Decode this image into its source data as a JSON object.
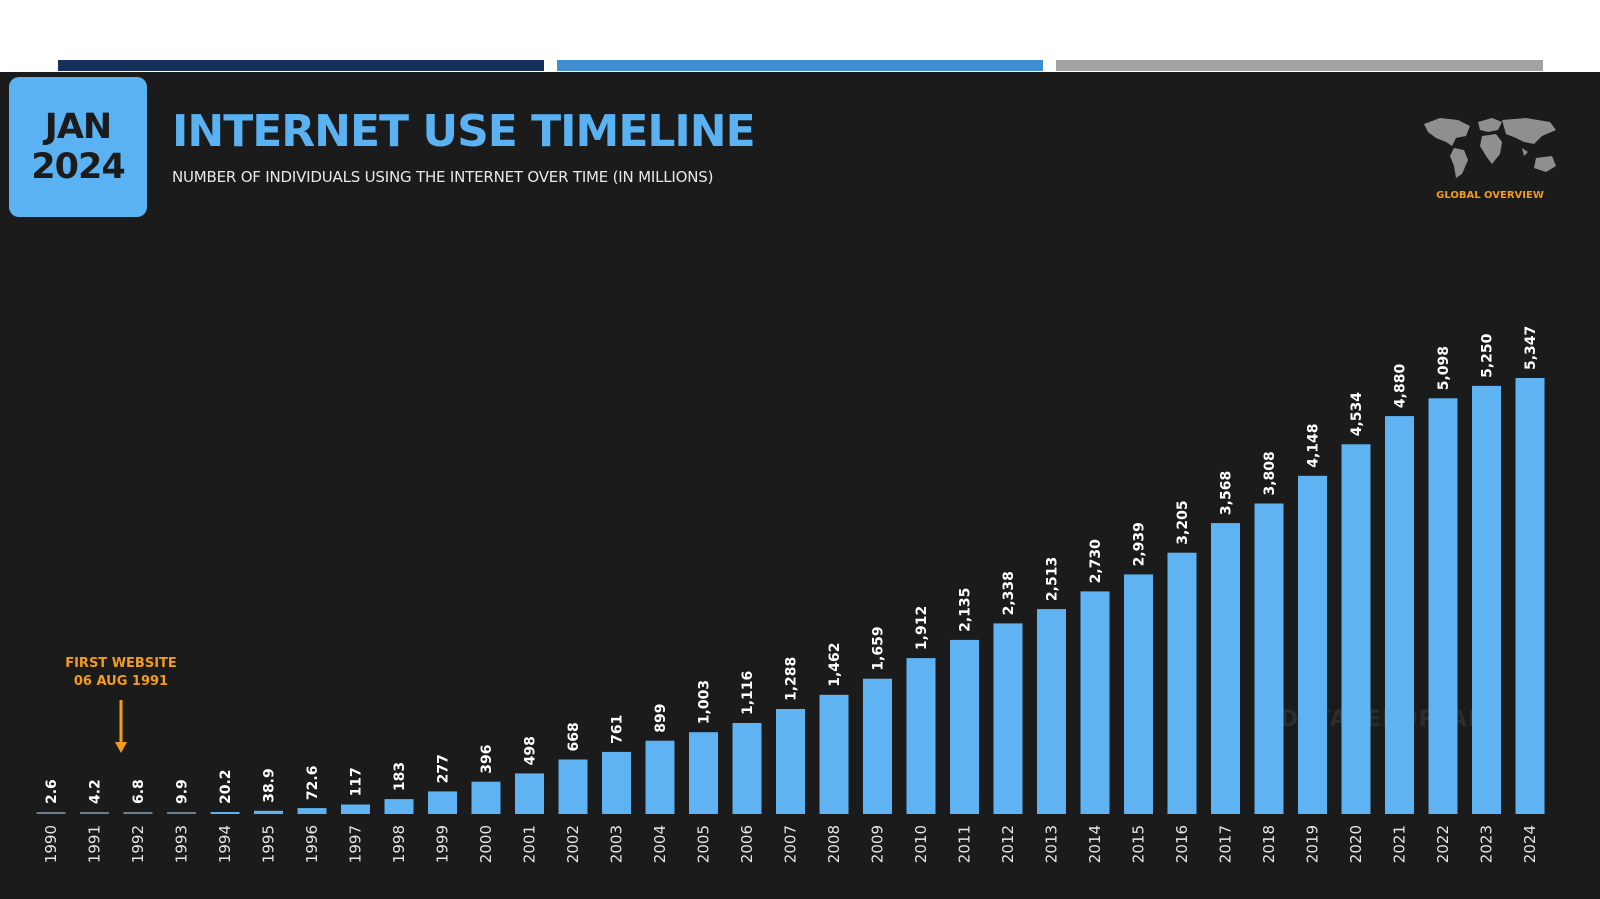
{
  "theme": {
    "accent": "#5ab2f2",
    "bar_color": "#5fb3f3",
    "background": "#1b1b1b",
    "annotation_color": "#f39c19",
    "top_bar_colors": [
      "#17305c",
      "#3f8fd0",
      "#a3a3a3"
    ]
  },
  "header": {
    "badge_month": "JAN",
    "badge_year": "2024",
    "title": "INTERNET USE TIMELINE",
    "subtitle": "NUMBER OF INDIVIDUALS USING THE INTERNET OVER TIME (IN MILLIONS)",
    "map_icon": "world-map-icon",
    "overview_label": "GLOBAL OVERVIEW"
  },
  "annotation": {
    "line1": "FIRST WEBSITE",
    "line2": "06 AUG 1991"
  },
  "watermark": "DATAREPORTAL",
  "chart_data": {
    "type": "bar",
    "title": "INTERNET USE TIMELINE",
    "subtitle": "NUMBER OF INDIVIDUALS USING THE INTERNET OVER TIME (IN MILLIONS)",
    "categories": [
      "1990",
      "1991",
      "1992",
      "1993",
      "1994",
      "1995",
      "1996",
      "1997",
      "1998",
      "1999",
      "2000",
      "2001",
      "2002",
      "2003",
      "2004",
      "2005",
      "2006",
      "2007",
      "2008",
      "2009",
      "2010",
      "2011",
      "2012",
      "2013",
      "2014",
      "2015",
      "2016",
      "2017",
      "2018",
      "2019",
      "2020",
      "2021",
      "2022",
      "2023",
      "2024"
    ],
    "values": [
      2.6,
      4.2,
      6.8,
      9.9,
      20.2,
      38.9,
      72.6,
      117,
      183,
      277,
      396,
      498,
      668,
      761,
      899,
      1003,
      1116,
      1288,
      1462,
      1659,
      1912,
      2135,
      2338,
      2513,
      2730,
      2939,
      3205,
      3568,
      3808,
      4148,
      4534,
      4880,
      5098,
      5250,
      5347
    ],
    "value_labels": [
      "2.6",
      "4.2",
      "6.8",
      "9.9",
      "20.2",
      "38.9",
      "72.6",
      "117",
      "183",
      "277",
      "396",
      "498",
      "668",
      "761",
      "899",
      "1,003",
      "1,116",
      "1,288",
      "1,462",
      "1,659",
      "1,912",
      "2,135",
      "2,338",
      "2,513",
      "2,730",
      "2,939",
      "3,205",
      "3,568",
      "3,808",
      "4,148",
      "4,534",
      "4,880",
      "5,098",
      "5,250",
      "5,347"
    ],
    "xlabel": "",
    "ylabel": "",
    "grid": false,
    "legend": "none"
  }
}
